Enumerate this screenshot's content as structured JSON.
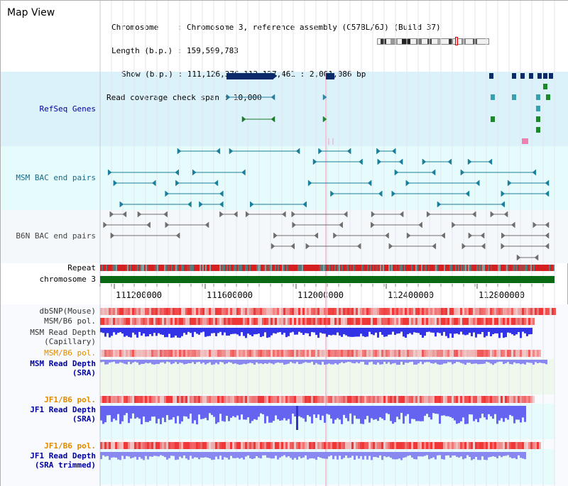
{
  "page": {
    "title": "Map View"
  },
  "info": {
    "chromosome_label": "Chromosome",
    "chromosome_value": "Chromosome 3, reference assembly (C57BL/6J) (Build 37)",
    "length_label": "Length (b.p.)",
    "length_value": "159,599,783",
    "show_label": "Show (b.p.)",
    "show_value": "111,126,376-113,127,461 : 2,001,086 bp",
    "coverage_label": "Read coverage check span",
    "coverage_value": "10,000"
  },
  "tracks": {
    "refseq": "RefSeq Genes",
    "msm_bac": "MSM BAC end pairs",
    "b6n_bac": "B6N BAC end pairs",
    "repeat": "Repeat",
    "chromosome": "chromosome 3",
    "dbsnp": "dbSNP(Mouse)",
    "msm_b6_pol_1": "MSM/B6 pol.",
    "msm_read_depth_cap_1": "MSM Read Depth",
    "msm_read_depth_cap_2": "(Capillary)",
    "msm_b6_pol_2": "MSM/B6 pol.",
    "msm_read_depth_sra_1": "MSM Read Depth",
    "msm_read_depth_sra_2": "(SRA)",
    "jf1_b6_pol_1": "JF1/B6 pol.",
    "jf1_read_depth_sra_1": "JF1 Read Depth",
    "jf1_read_depth_sra_2": "(SRA)",
    "jf1_b6_pol_2": "JF1/B6 pol.",
    "jf1_read_depth_trim_1": "JF1 Read Depth",
    "jf1_read_depth_trim_2": "(SRA trimmed)"
  },
  "axis": {
    "ticks": [
      "111200000",
      "111600000",
      "112000000",
      "112400000",
      "112800000"
    ]
  },
  "colors": {
    "refseq_bg": "#dcf2fb",
    "bac_bg": "#e6fbfb",
    "msm_bac": "#1a7f9a",
    "b6n_bac": "#6e6e6e",
    "repeat": "#d42020",
    "chromosome": "#0a6a14",
    "polymorphism": "#f05050",
    "depth_capillary": "#3232e6",
    "depth_sra": "#8888f0",
    "label_blue": "#0000a0",
    "label_teal": "#1a6a8a",
    "label_orange": "#e08a00"
  }
}
